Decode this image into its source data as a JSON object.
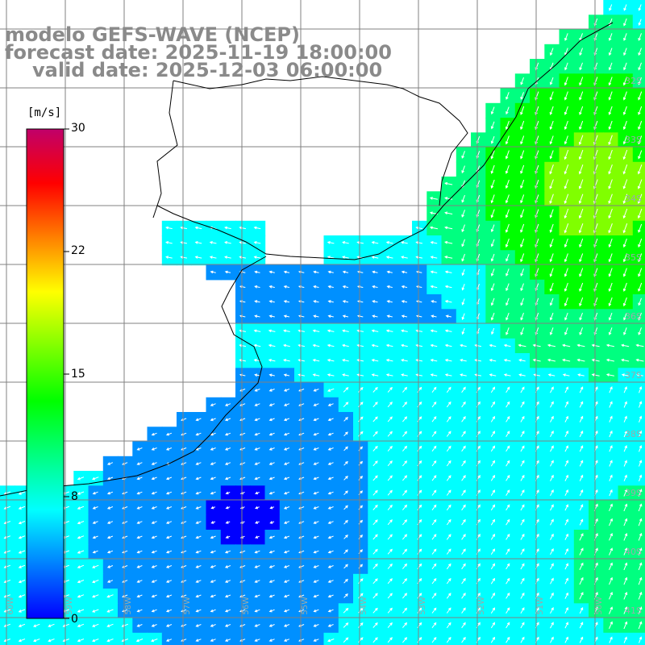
{
  "header": {
    "model": "modelo GEFS-WAVE (NCEP)",
    "forecast": "forecast date: 2025-11-19 18:00:00",
    "valid": "valid date: 2025-12-03 06:00:00"
  },
  "colorbar": {
    "unit": "[m/s]",
    "ticks": [
      "30",
      "22",
      "15",
      "8",
      "0"
    ],
    "colors": [
      "#0000ff",
      "#0080ff",
      "#00ffff",
      "#00ff80",
      "#00ff00",
      "#80ff00",
      "#ffff00",
      "#ff8000",
      "#ff0000",
      "#c0006a"
    ]
  },
  "axes": {
    "lat_labels": [
      "32S",
      "33S",
      "34S",
      "35S",
      "36S",
      "37S",
      "38S",
      "39S",
      "40S",
      "41S"
    ],
    "lon_labels": [
      "60W",
      "59W",
      "58W",
      "57W",
      "56W",
      "55W",
      "54W",
      "53W",
      "52W",
      "51W",
      "50W"
    ]
  },
  "field": {
    "variable": "wind speed and direction",
    "palette": [
      "#0000ff",
      "#0090ff",
      "#00ffff",
      "#00ff80",
      "#00ff00",
      "#80ff00"
    ]
  }
}
